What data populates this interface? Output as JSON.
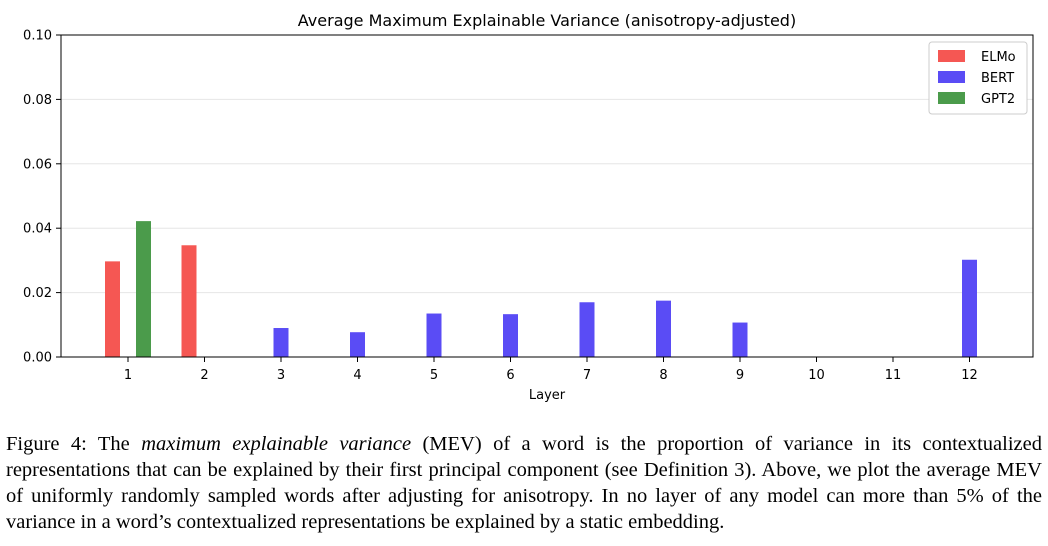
{
  "chart_data": {
    "type": "bar",
    "title": "Average Maximum Explainable Variance (anisotropy-adjusted)",
    "xlabel": "Layer",
    "ylabel": "",
    "categories": [
      "1",
      "2",
      "3",
      "4",
      "5",
      "6",
      "7",
      "8",
      "9",
      "10",
      "11",
      "12"
    ],
    "ylim": [
      0,
      0.1
    ],
    "yticks": [
      "0.00",
      "0.02",
      "0.04",
      "0.06",
      "0.08",
      "0.10"
    ],
    "ytick_values": [
      0,
      0.02,
      0.04,
      0.06,
      0.08,
      0.1
    ],
    "grid": true,
    "legend_position": "top-right",
    "series": [
      {
        "name": "ELMo",
        "color": "#f55753",
        "values": [
          0.0297,
          0.0347,
          null,
          null,
          null,
          null,
          null,
          null,
          null,
          null,
          null,
          null
        ]
      },
      {
        "name": "BERT",
        "color": "#5a4cf5",
        "values": [
          null,
          null,
          0.009,
          0.0077,
          0.0135,
          0.0133,
          0.017,
          0.0175,
          0.0107,
          null,
          null,
          0.0302
        ]
      },
      {
        "name": "GPT2",
        "color": "#4b9b4b",
        "values": [
          0.0422,
          null,
          null,
          null,
          null,
          null,
          null,
          null,
          null,
          null,
          null,
          null
        ]
      }
    ]
  },
  "caption": {
    "label": "Figure 4:",
    "t1": " The ",
    "em": "maximum explainable variance",
    "t2": " (MEV) of a word is the proportion of variance in its contextualized representations that can be explained by their first principal component (see Definition 3).  Above, we plot the average MEV of uniformly randomly sampled words after adjusting for anisotropy. In no layer of any model can more than 5% of the variance in a word’s contextualized representations be explained by a static embedding."
  }
}
